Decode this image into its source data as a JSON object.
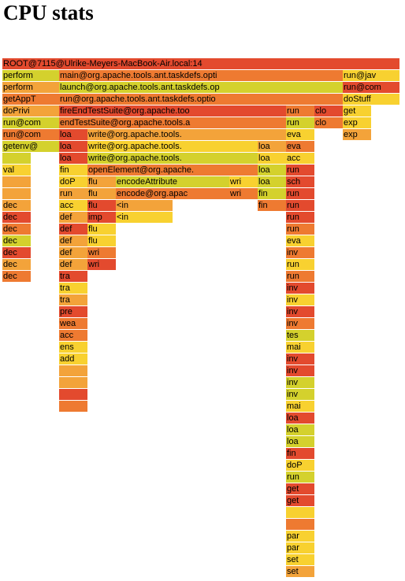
{
  "title": "CPU stats",
  "palette": {
    "r": "#e34a2e",
    "o": "#ee7a31",
    "a": "#f3a33a",
    "y": "#f8d130",
    "g": "#d4d12d"
  },
  "chart_data": {
    "type": "flame",
    "unit_width": 36,
    "depth_height": 15,
    "frames": [
      {
        "d": 0,
        "s": 0,
        "w": 14,
        "label": "ROOT@7115@Ulrike-Meyers-MacBook-Air.local:14",
        "c": "r"
      },
      {
        "d": 1,
        "s": 0,
        "w": 2,
        "label": "perform",
        "c": "g"
      },
      {
        "d": 1,
        "s": 2,
        "w": 10,
        "label": "main@org.apache.tools.ant.taskdefs.opti",
        "c": "o"
      },
      {
        "d": 1,
        "s": 12,
        "w": 2,
        "label": "run@jav",
        "c": "y"
      },
      {
        "d": 2,
        "s": 0,
        "w": 2,
        "label": "perform",
        "c": "a"
      },
      {
        "d": 2,
        "s": 2,
        "w": 10,
        "label": "launch@org.apache.tools.ant.taskdefs.op",
        "c": "g"
      },
      {
        "d": 2,
        "s": 12,
        "w": 2,
        "label": "run@com",
        "c": "r"
      },
      {
        "d": 3,
        "s": 0,
        "w": 2,
        "label": "getAppT",
        "c": "o"
      },
      {
        "d": 3,
        "s": 2,
        "w": 10,
        "label": "run@org.apache.tools.ant.taskdefs.optio",
        "c": "o"
      },
      {
        "d": 3,
        "s": 12,
        "w": 2,
        "label": "doStuff",
        "c": "y"
      },
      {
        "d": 4,
        "s": 0,
        "w": 2,
        "label": "doPrivi",
        "c": "a"
      },
      {
        "d": 4,
        "s": 2,
        "w": 8,
        "label": "fireEndTestSuite@org.apache.too",
        "c": "r"
      },
      {
        "d": 4,
        "s": 10,
        "w": 1,
        "label": "run",
        "c": "o"
      },
      {
        "d": 4,
        "s": 11,
        "w": 1,
        "label": "clo",
        "c": "r"
      },
      {
        "d": 4,
        "s": 12,
        "w": 1,
        "label": "get",
        "c": "y"
      },
      {
        "d": 5,
        "s": 0,
        "w": 2,
        "label": "run@com",
        "c": "g"
      },
      {
        "d": 5,
        "s": 2,
        "w": 8,
        "label": "endTestSuite@org.apache.tools.a",
        "c": "o"
      },
      {
        "d": 5,
        "s": 10,
        "w": 1,
        "label": "run",
        "c": "g"
      },
      {
        "d": 5,
        "s": 11,
        "w": 1,
        "label": "clo",
        "c": "o"
      },
      {
        "d": 5,
        "s": 12,
        "w": 1,
        "label": "exp",
        "c": "y"
      },
      {
        "d": 6,
        "s": 0,
        "w": 2,
        "label": "run@com",
        "c": "o"
      },
      {
        "d": 6,
        "s": 2,
        "w": 1,
        "label": "loa",
        "c": "r"
      },
      {
        "d": 6,
        "s": 3,
        "w": 7,
        "label": "write@org.apache.tools.",
        "c": "a"
      },
      {
        "d": 6,
        "s": 10,
        "w": 1,
        "label": "eva",
        "c": "y"
      },
      {
        "d": 6,
        "s": 12,
        "w": 1,
        "label": "exp",
        "c": "a"
      },
      {
        "d": 7,
        "s": 0,
        "w": 2,
        "label": "getenv@",
        "c": "g"
      },
      {
        "d": 7,
        "s": 2,
        "w": 1,
        "label": "loa",
        "c": "r"
      },
      {
        "d": 7,
        "s": 3,
        "w": 6,
        "label": "write@org.apache.tools.",
        "c": "y"
      },
      {
        "d": 7,
        "s": 9,
        "w": 1,
        "label": "loa",
        "c": "a"
      },
      {
        "d": 7,
        "s": 10,
        "w": 1,
        "label": "eva",
        "c": "o"
      },
      {
        "d": 8,
        "s": 0,
        "w": 1,
        "label": "",
        "c": "g"
      },
      {
        "d": 8,
        "s": 2,
        "w": 1,
        "label": "loa",
        "c": "r"
      },
      {
        "d": 8,
        "s": 3,
        "w": 6,
        "label": "write@org.apache.tools.",
        "c": "g"
      },
      {
        "d": 8,
        "s": 9,
        "w": 1,
        "label": "loa",
        "c": "y"
      },
      {
        "d": 8,
        "s": 10,
        "w": 1,
        "label": "acc",
        "c": "y"
      },
      {
        "d": 9,
        "s": 0,
        "w": 1,
        "label": "val",
        "c": "y"
      },
      {
        "d": 9,
        "s": 2,
        "w": 1,
        "label": "fin",
        "c": "y"
      },
      {
        "d": 9,
        "s": 3,
        "w": 6,
        "label": "openElement@org.apache.",
        "c": "o"
      },
      {
        "d": 9,
        "s": 9,
        "w": 1,
        "label": "loa",
        "c": "g"
      },
      {
        "d": 9,
        "s": 10,
        "w": 1,
        "label": "run",
        "c": "r"
      },
      {
        "d": 10,
        "s": 0,
        "w": 1,
        "label": "",
        "c": "a"
      },
      {
        "d": 10,
        "s": 2,
        "w": 1,
        "label": "doP",
        "c": "y"
      },
      {
        "d": 10,
        "s": 3,
        "w": 1,
        "label": "flu",
        "c": "a"
      },
      {
        "d": 10,
        "s": 4,
        "w": 4,
        "label": "encodeAttribute",
        "c": "g"
      },
      {
        "d": 10,
        "s": 8,
        "w": 1,
        "label": "wri",
        "c": "y"
      },
      {
        "d": 10,
        "s": 9,
        "w": 1,
        "label": "loa",
        "c": "g"
      },
      {
        "d": 10,
        "s": 10,
        "w": 1,
        "label": "sch",
        "c": "r"
      },
      {
        "d": 11,
        "s": 0,
        "w": 1,
        "label": "",
        "c": "a"
      },
      {
        "d": 11,
        "s": 2,
        "w": 1,
        "label": "run",
        "c": "a"
      },
      {
        "d": 11,
        "s": 3,
        "w": 1,
        "label": "flu",
        "c": "a"
      },
      {
        "d": 11,
        "s": 4,
        "w": 4,
        "label": "encode@org.apac",
        "c": "o"
      },
      {
        "d": 11,
        "s": 8,
        "w": 1,
        "label": "wri",
        "c": "o"
      },
      {
        "d": 11,
        "s": 9,
        "w": 1,
        "label": "fin",
        "c": "g"
      },
      {
        "d": 11,
        "s": 10,
        "w": 1,
        "label": "run",
        "c": "r"
      },
      {
        "d": 12,
        "s": 0,
        "w": 1,
        "label": "dec",
        "c": "a"
      },
      {
        "d": 12,
        "s": 2,
        "w": 1,
        "label": "acc",
        "c": "y"
      },
      {
        "d": 12,
        "s": 3,
        "w": 1,
        "label": "flu",
        "c": "r"
      },
      {
        "d": 12,
        "s": 4,
        "w": 2,
        "label": "<in",
        "c": "a"
      },
      {
        "d": 12,
        "s": 9,
        "w": 1,
        "label": "fin",
        "c": "o"
      },
      {
        "d": 12,
        "s": 10,
        "w": 1,
        "label": "run",
        "c": "r"
      },
      {
        "d": 13,
        "s": 0,
        "w": 1,
        "label": "dec",
        "c": "r"
      },
      {
        "d": 13,
        "s": 2,
        "w": 1,
        "label": "def",
        "c": "a"
      },
      {
        "d": 13,
        "s": 3,
        "w": 1,
        "label": "imp",
        "c": "r"
      },
      {
        "d": 13,
        "s": 4,
        "w": 2,
        "label": "<in",
        "c": "y"
      },
      {
        "d": 13,
        "s": 10,
        "w": 1,
        "label": "run",
        "c": "r"
      },
      {
        "d": 14,
        "s": 0,
        "w": 1,
        "label": "dec",
        "c": "o"
      },
      {
        "d": 14,
        "s": 2,
        "w": 1,
        "label": "def",
        "c": "r"
      },
      {
        "d": 14,
        "s": 3,
        "w": 1,
        "label": "flu",
        "c": "y"
      },
      {
        "d": 14,
        "s": 10,
        "w": 1,
        "label": "run",
        "c": "o"
      },
      {
        "d": 15,
        "s": 0,
        "w": 1,
        "label": "dec",
        "c": "g"
      },
      {
        "d": 15,
        "s": 2,
        "w": 1,
        "label": "def",
        "c": "a"
      },
      {
        "d": 15,
        "s": 3,
        "w": 1,
        "label": "flu",
        "c": "y"
      },
      {
        "d": 15,
        "s": 10,
        "w": 1,
        "label": "eva",
        "c": "y"
      },
      {
        "d": 16,
        "s": 0,
        "w": 1,
        "label": "dec",
        "c": "r"
      },
      {
        "d": 16,
        "s": 2,
        "w": 1,
        "label": "def",
        "c": "a"
      },
      {
        "d": 16,
        "s": 3,
        "w": 1,
        "label": "wri",
        "c": "o"
      },
      {
        "d": 16,
        "s": 10,
        "w": 1,
        "label": "inv",
        "c": "o"
      },
      {
        "d": 17,
        "s": 0,
        "w": 1,
        "label": "dec",
        "c": "a"
      },
      {
        "d": 17,
        "s": 2,
        "w": 1,
        "label": "def",
        "c": "a"
      },
      {
        "d": 17,
        "s": 3,
        "w": 1,
        "label": "wri",
        "c": "r"
      },
      {
        "d": 17,
        "s": 10,
        "w": 1,
        "label": "run",
        "c": "y"
      },
      {
        "d": 18,
        "s": 0,
        "w": 1,
        "label": "dec",
        "c": "o"
      },
      {
        "d": 18,
        "s": 2,
        "w": 1,
        "label": "tra",
        "c": "r"
      },
      {
        "d": 18,
        "s": 10,
        "w": 1,
        "label": "run",
        "c": "o"
      },
      {
        "d": 19,
        "s": 2,
        "w": 1,
        "label": "tra",
        "c": "y"
      },
      {
        "d": 19,
        "s": 10,
        "w": 1,
        "label": "inv",
        "c": "r"
      },
      {
        "d": 20,
        "s": 2,
        "w": 1,
        "label": "tra",
        "c": "a"
      },
      {
        "d": 20,
        "s": 10,
        "w": 1,
        "label": "inv",
        "c": "y"
      },
      {
        "d": 21,
        "s": 2,
        "w": 1,
        "label": "pre",
        "c": "r"
      },
      {
        "d": 21,
        "s": 10,
        "w": 1,
        "label": "inv",
        "c": "r"
      },
      {
        "d": 22,
        "s": 2,
        "w": 1,
        "label": "wea",
        "c": "o"
      },
      {
        "d": 22,
        "s": 10,
        "w": 1,
        "label": "inv",
        "c": "o"
      },
      {
        "d": 23,
        "s": 2,
        "w": 1,
        "label": "acc",
        "c": "o"
      },
      {
        "d": 23,
        "s": 10,
        "w": 1,
        "label": "tes",
        "c": "g"
      },
      {
        "d": 24,
        "s": 2,
        "w": 1,
        "label": "ens",
        "c": "y"
      },
      {
        "d": 24,
        "s": 10,
        "w": 1,
        "label": "mai",
        "c": "y"
      },
      {
        "d": 25,
        "s": 2,
        "w": 1,
        "label": "add",
        "c": "y"
      },
      {
        "d": 25,
        "s": 10,
        "w": 1,
        "label": "inv",
        "c": "r"
      },
      {
        "d": 26,
        "s": 2,
        "w": 1,
        "label": "",
        "c": "a"
      },
      {
        "d": 26,
        "s": 10,
        "w": 1,
        "label": "inv",
        "c": "r"
      },
      {
        "d": 27,
        "s": 2,
        "w": 1,
        "label": "",
        "c": "a"
      },
      {
        "d": 27,
        "s": 10,
        "w": 1,
        "label": "inv",
        "c": "g"
      },
      {
        "d": 28,
        "s": 2,
        "w": 1,
        "label": "",
        "c": "r"
      },
      {
        "d": 28,
        "s": 10,
        "w": 1,
        "label": "inv",
        "c": "g"
      },
      {
        "d": 29,
        "s": 2,
        "w": 1,
        "label": "",
        "c": "o"
      },
      {
        "d": 29,
        "s": 10,
        "w": 1,
        "label": "mai",
        "c": "y"
      },
      {
        "d": 30,
        "s": 10,
        "w": 1,
        "label": "loa",
        "c": "r"
      },
      {
        "d": 31,
        "s": 10,
        "w": 1,
        "label": "loa",
        "c": "g"
      },
      {
        "d": 32,
        "s": 10,
        "w": 1,
        "label": "loa",
        "c": "g"
      },
      {
        "d": 33,
        "s": 10,
        "w": 1,
        "label": "fin",
        "c": "r"
      },
      {
        "d": 34,
        "s": 10,
        "w": 1,
        "label": "doP",
        "c": "y"
      },
      {
        "d": 35,
        "s": 10,
        "w": 1,
        "label": "run",
        "c": "g"
      },
      {
        "d": 36,
        "s": 10,
        "w": 1,
        "label": "get",
        "c": "r"
      },
      {
        "d": 37,
        "s": 10,
        "w": 1,
        "label": "get",
        "c": "r"
      },
      {
        "d": 38,
        "s": 10,
        "w": 1,
        "label": "",
        "c": "y"
      },
      {
        "d": 39,
        "s": 10,
        "w": 1,
        "label": "",
        "c": "o"
      },
      {
        "d": 40,
        "s": 10,
        "w": 1,
        "label": "par",
        "c": "y"
      },
      {
        "d": 41,
        "s": 10,
        "w": 1,
        "label": "par",
        "c": "y"
      },
      {
        "d": 42,
        "s": 10,
        "w": 1,
        "label": "set",
        "c": "y"
      },
      {
        "d": 43,
        "s": 10,
        "w": 1,
        "label": "set",
        "c": "a"
      }
    ]
  }
}
